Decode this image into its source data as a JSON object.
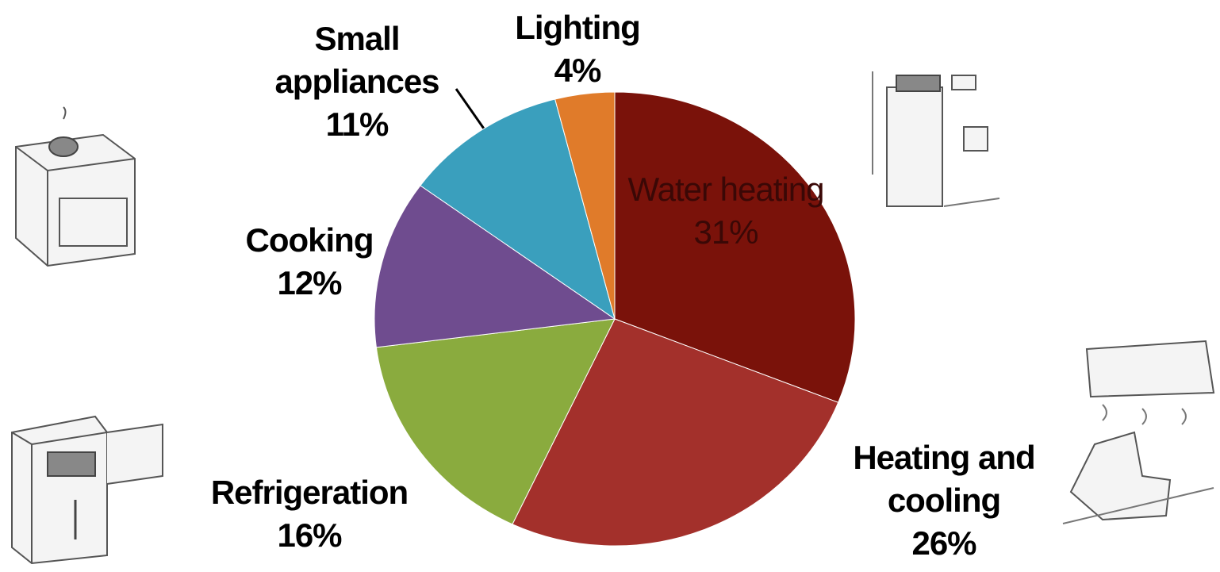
{
  "chart_data": {
    "type": "pie",
    "categories": [
      "Water heating",
      "Heating and cooling",
      "Refrigeration",
      "Cooking",
      "Small appliances",
      "Lighting"
    ],
    "values": [
      31,
      26,
      16,
      12,
      11,
      4
    ],
    "value_labels": [
      "31%",
      "26%",
      "16%",
      "12%",
      "11%",
      "4%"
    ],
    "colors": [
      "#7a120a",
      "#a3302b",
      "#8aab3e",
      "#6f4c8f",
      "#3a9fbd",
      "#e07b2a"
    ]
  }
}
